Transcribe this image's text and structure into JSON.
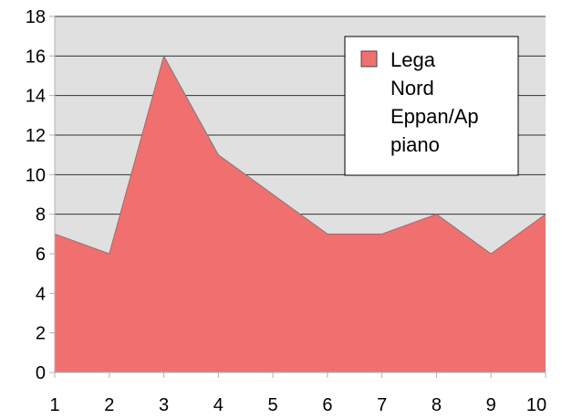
{
  "chart_data": {
    "type": "area",
    "x": [
      1,
      2,
      3,
      4,
      5,
      6,
      7,
      8,
      9,
      10
    ],
    "series": [
      {
        "name": "Lega Nord Eppan/Appiano",
        "values": [
          7,
          6,
          16,
          11,
          9,
          7,
          7,
          8,
          6,
          8
        ]
      }
    ],
    "legend_lines": [
      "Lega",
      "Nord",
      "Eppan/Ap",
      "piano"
    ],
    "x_tick_labels": [
      "1",
      "2",
      "3",
      "4",
      "5",
      "6",
      "7",
      "8",
      "9",
      "10"
    ],
    "y_tick_labels": [
      "0",
      "2",
      "4",
      "6",
      "8",
      "10",
      "12",
      "14",
      "16",
      "18"
    ],
    "ylim": [
      0,
      18
    ],
    "grid": "horizontal",
    "legend_position": "top-right",
    "colors": {
      "fill": "#f07070",
      "stroke": "#7a7a7a",
      "plot_background": "#e0e0e0",
      "grid": "#333333"
    }
  }
}
